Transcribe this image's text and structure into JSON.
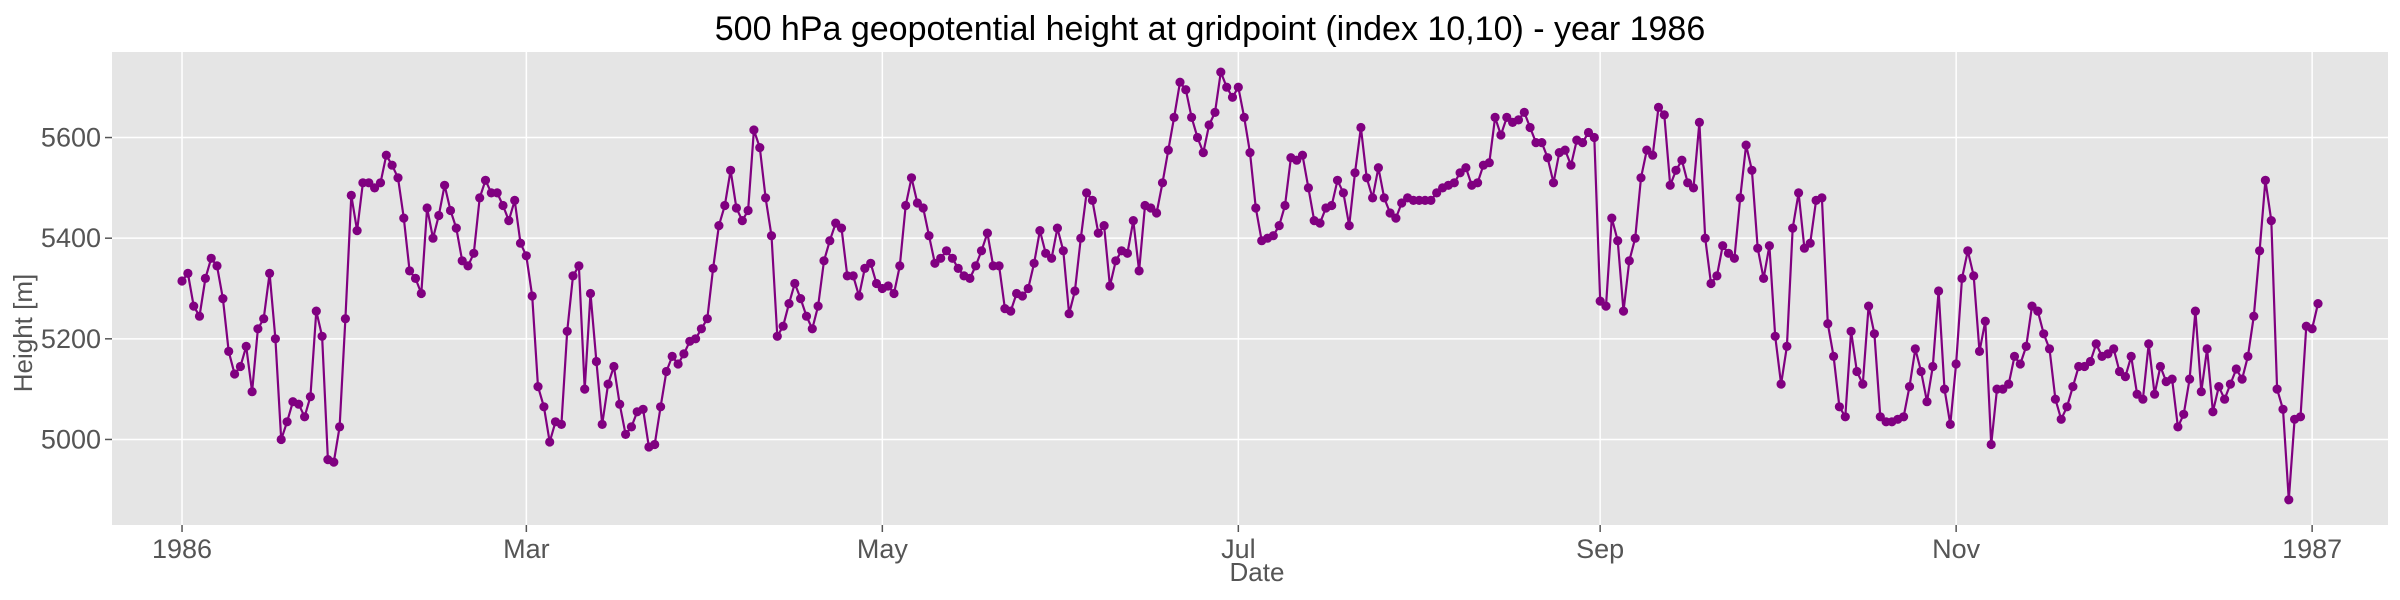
{
  "chart_data": {
    "type": "line",
    "title": "500 hPa geopotential height at gridpoint (index 10,10) - year 1986",
    "xlabel": "Date",
    "ylabel": "Height [m]",
    "xlim": [
      "1985-12-20",
      "1987-01-14"
    ],
    "ylim": [
      4830,
      5770
    ],
    "x_ticks": [
      {
        "date": "1986-01-01",
        "label": "1986"
      },
      {
        "date": "1986-03-01",
        "label": "Mar"
      },
      {
        "date": "1986-05-01",
        "label": "May"
      },
      {
        "date": "1986-07-01",
        "label": "Jul"
      },
      {
        "date": "1986-09-01",
        "label": "Sep"
      },
      {
        "date": "1986-11-01",
        "label": "Nov"
      },
      {
        "date": "1987-01-01",
        "label": "1987"
      }
    ],
    "y_ticks": [
      5000,
      5200,
      5400,
      5600
    ],
    "grid": true,
    "background_color": "#e5e5e5",
    "grid_color": "#ffffff",
    "line_color": "#800080",
    "marker": "circle",
    "series": [
      {
        "start_date": "1986-01-01",
        "step_days": 1,
        "values": [
          5315,
          5330,
          5265,
          5245,
          5320,
          5360,
          5345,
          5280,
          5175,
          5130,
          5145,
          5185,
          5095,
          5220,
          5240,
          5330,
          5200,
          5000,
          5035,
          5075,
          5070,
          5045,
          5085,
          5255,
          5205,
          4960,
          4955,
          5025,
          5240,
          5485,
          5415,
          5510,
          5510,
          5500,
          5510,
          5565,
          5545,
          5520,
          5440,
          5335,
          5320,
          5290,
          5460,
          5400,
          5445,
          5505,
          5455,
          5420,
          5355,
          5345,
          5370,
          5480,
          5515,
          5490,
          5490,
          5465,
          5435,
          5475,
          5390,
          5365,
          5285,
          5105,
          5065,
          4995,
          5035,
          5030,
          5215,
          5325,
          5345,
          5100,
          5290,
          5155,
          5030,
          5110,
          5145,
          5070,
          5010,
          5025,
          5055,
          5060,
          4985,
          4990,
          5065,
          5135,
          5165,
          5150,
          5170,
          5195,
          5200,
          5220,
          5240,
          5340,
          5425,
          5465,
          5535,
          5460,
          5435,
          5455,
          5615,
          5580,
          5480,
          5405,
          5205,
          5225,
          5270,
          5310,
          5280,
          5245,
          5220,
          5265,
          5355,
          5395,
          5430,
          5420,
          5325,
          5325,
          5285,
          5340,
          5350,
          5310,
          5300,
          5305,
          5290,
          5345,
          5465,
          5520,
          5470,
          5460,
          5405,
          5350,
          5360,
          5375,
          5360,
          5340,
          5325,
          5320,
          5345,
          5375,
          5410,
          5345,
          5345,
          5260,
          5255,
          5290,
          5285,
          5300,
          5350,
          5415,
          5370,
          5360,
          5420,
          5375,
          5250,
          5295,
          5400,
          5490,
          5475,
          5410,
          5425,
          5305,
          5355,
          5375,
          5370,
          5435,
          5335,
          5465,
          5460,
          5450,
          5510,
          5575,
          5640,
          5710,
          5695,
          5640,
          5600,
          5570,
          5625,
          5650,
          5730,
          5700,
          5680,
          5700,
          5640,
          5570,
          5460,
          5395,
          5400,
          5405,
          5425,
          5465,
          5560,
          5555,
          5565,
          5500,
          5435,
          5430,
          5460,
          5465,
          5515,
          5490,
          5425,
          5530,
          5620,
          5520,
          5480,
          5540,
          5480,
          5450,
          5440,
          5470,
          5480,
          5475,
          5475,
          5475,
          5475,
          5490,
          5500,
          5505,
          5510,
          5530,
          5540,
          5505,
          5510,
          5545,
          5550,
          5640,
          5605,
          5640,
          5630,
          5635,
          5650,
          5620,
          5590,
          5590,
          5560,
          5510,
          5570,
          5575,
          5545,
          5595,
          5590,
          5610,
          5600,
          5275,
          5265,
          5440,
          5395,
          5255,
          5355,
          5400,
          5520,
          5575,
          5565,
          5660,
          5645,
          5505,
          5535,
          5555,
          5510,
          5500,
          5630,
          5400,
          5310,
          5325,
          5385,
          5370,
          5360,
          5480,
          5585,
          5535,
          5380,
          5320,
          5385,
          5205,
          5110,
          5185,
          5420,
          5490,
          5380,
          5390,
          5475,
          5480,
          5230,
          5165,
          5065,
          5045,
          5215,
          5135,
          5110,
          5265,
          5210,
          5045,
          5035,
          5035,
          5040,
          5045,
          5105,
          5180,
          5135,
          5075,
          5145,
          5295,
          5100,
          5030,
          5150,
          5320,
          5375,
          5325,
          5175,
          5235,
          4990,
          5100,
          5100,
          5110,
          5165,
          5150,
          5185,
          5265,
          5255,
          5210,
          5180,
          5080,
          5040,
          5065,
          5105,
          5145,
          5145,
          5155,
          5190,
          5165,
          5170,
          5180,
          5135,
          5125,
          5165,
          5090,
          5080,
          5190,
          5090,
          5145,
          5115,
          5120,
          5025,
          5050,
          5120,
          5255,
          5095,
          5180,
          5055,
          5105,
          5080,
          5110,
          5140,
          5120,
          5165,
          5245,
          5375,
          5515,
          5435,
          5100,
          5060,
          4880,
          5040,
          5045,
          5225,
          5220,
          5270
        ]
      }
    ]
  }
}
